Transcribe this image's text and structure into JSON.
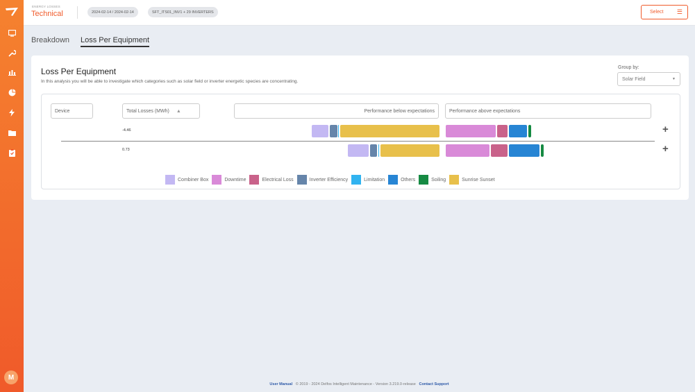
{
  "header": {
    "kicker": "ENERGY LOSSES",
    "title": "Technical",
    "date_range": "2024-02-14 / 2024-02-14",
    "equipment": "SFT_ITS01_INV1 + 29 INVERTERS",
    "select_label": "Select"
  },
  "sidebar": {
    "avatar_initial": "M"
  },
  "tabs": [
    {
      "label": "Breakdown",
      "active": false
    },
    {
      "label": "Loss Per Equipment",
      "active": true
    }
  ],
  "card": {
    "title": "Loss Per Equipment",
    "subtitle": "In this analysis you will be able to investigate which categories such as solar field or inverter energetic species are concentrating.",
    "group_by_label": "Group by:",
    "group_by_value": "Solar Field"
  },
  "table": {
    "col_device": "Device",
    "col_total": "Total Losses (MWh)",
    "col_below": "Performance below expectations",
    "col_above": "Performance above expectations",
    "rows": [
      {
        "total": "-4.46"
      },
      {
        "total": "0.73"
      }
    ]
  },
  "legend": [
    {
      "label": "Combiner Box",
      "color": "#c3b8f3"
    },
    {
      "label": "Downtime",
      "color": "#d98ad8"
    },
    {
      "label": "Electrical Loss",
      "color": "#c9628a"
    },
    {
      "label": "Inverter Efficiency",
      "color": "#6685aa"
    },
    {
      "label": "Limitation",
      "color": "#31b3f0"
    },
    {
      "label": "Others",
      "color": "#2785d4"
    },
    {
      "label": "Soiling",
      "color": "#168a43"
    },
    {
      "label": "Sunrise Sunset",
      "color": "#e8c04b"
    }
  ],
  "footer": {
    "manual": "User Manual",
    "copyright": "© 2019 - 2024 Delfos Intelligent Maintenance - Version 3.219.0-release",
    "support": "Contact Support"
  }
}
